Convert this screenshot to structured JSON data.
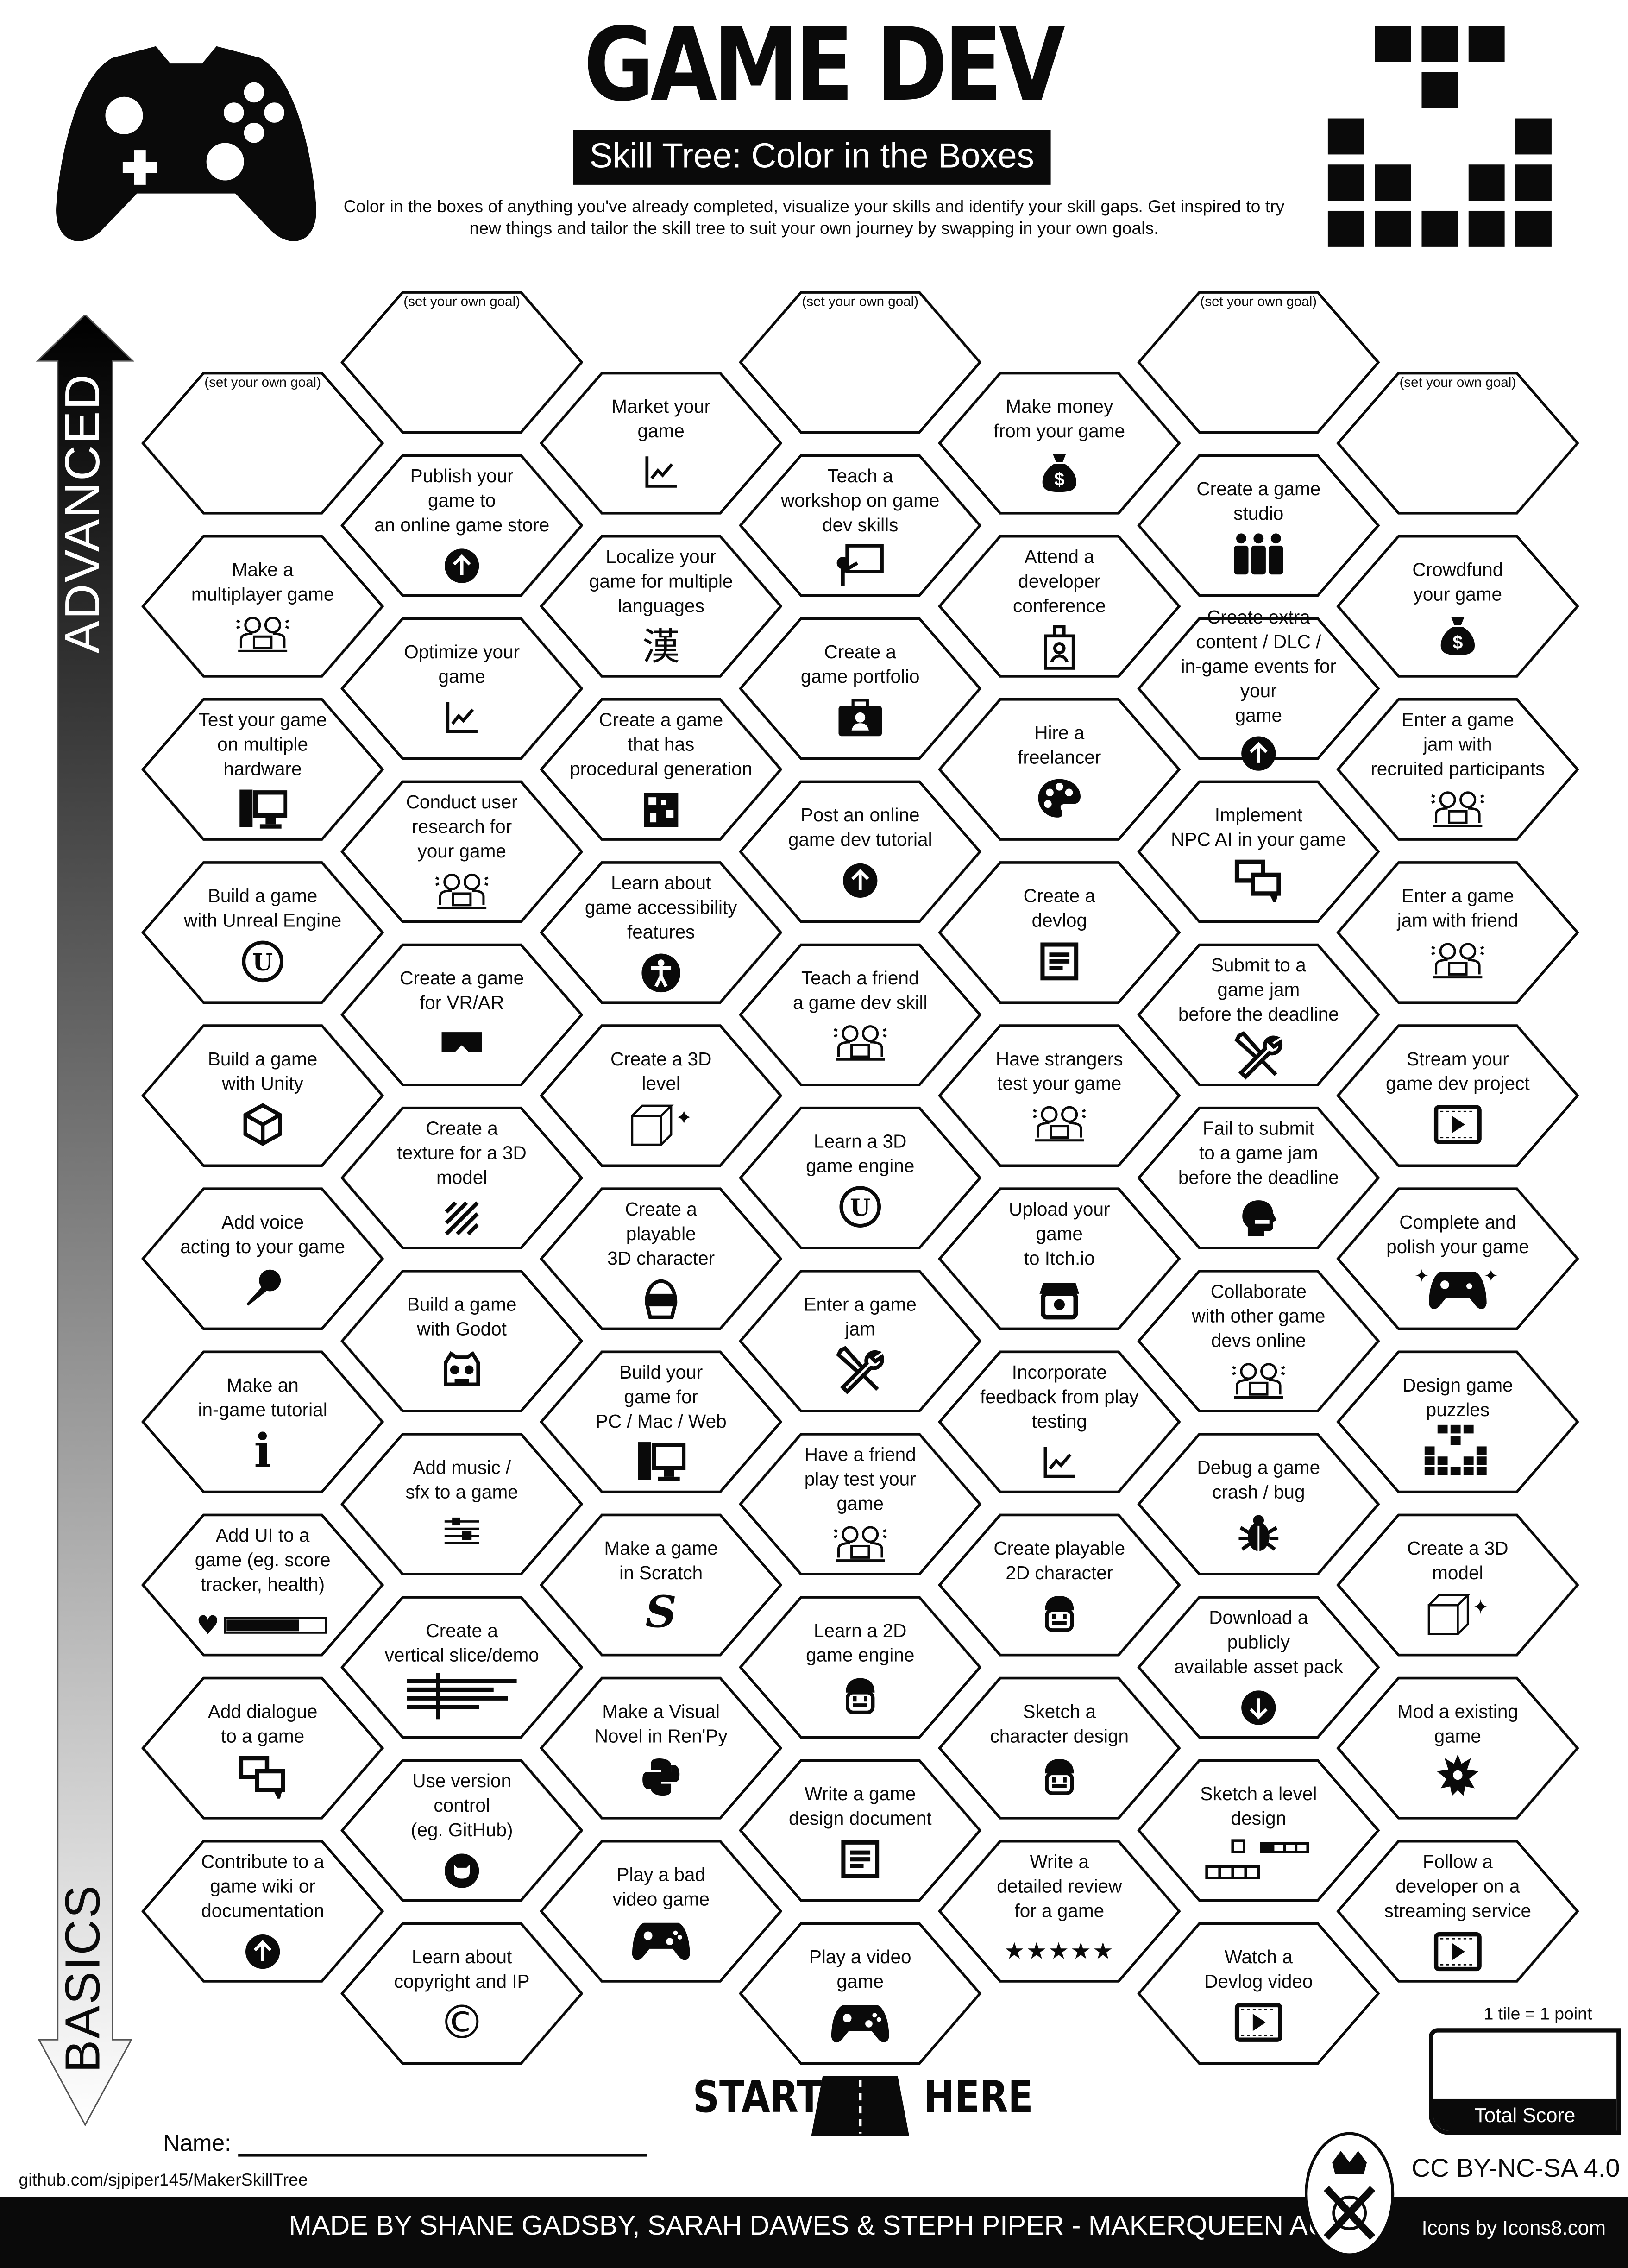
{
  "header": {
    "title": "GAME DEV",
    "subtitle": "Skill Tree: Color in the Boxes",
    "description": "Color in the boxes of anything you've already completed, visualize your skills and identify your skill gaps.  Get inspired to try new things and tailor the skill tree to suit your own journey by swapping in your own goals."
  },
  "axis": {
    "top_label": "ADVANCED",
    "bottom_label": "BASICS"
  },
  "columns": [
    [
      {
        "goal": "(set your own goal)"
      },
      {
        "text": "Make a\nmultiplayer game",
        "icon": "team"
      },
      {
        "text": "Test your game\non multiple\nhardware",
        "icon": "desktop"
      },
      {
        "text": "Build a game\nwith Unreal Engine",
        "icon": "unreal"
      },
      {
        "text": "Build a game\nwith Unity",
        "icon": "unity"
      },
      {
        "text": "Add voice\nacting to your game",
        "icon": "microphone"
      },
      {
        "text": "Make an\nin-game tutorial",
        "icon": "info"
      },
      {
        "text": "Add UI to a\ngame (eg. score\ntracker, health)",
        "icon": "health-bar"
      },
      {
        "text": "Add dialogue\nto a game",
        "icon": "chat"
      },
      {
        "text": "Contribute to a\ngame wiki or\ndocumentation",
        "icon": "upload"
      }
    ],
    [
      {
        "goal": "(set your own goal)"
      },
      {
        "text": "Publish your\ngame to\nan online game store",
        "icon": "upload"
      },
      {
        "text": "Optimize your\ngame",
        "icon": "chart"
      },
      {
        "text": "Conduct user\nresearch for\nyour game",
        "icon": "team"
      },
      {
        "text": "Create a game\nfor VR/AR",
        "icon": "vr-headset"
      },
      {
        "text": "Create a\ntexture for a 3D\nmodel",
        "icon": "texture"
      },
      {
        "text": "Build a game\nwith Godot",
        "icon": "godot"
      },
      {
        "text": "Add music /\nsfx to a game",
        "icon": "music"
      },
      {
        "text": "Create a\nvertical slice/demo",
        "icon": "timeline"
      },
      {
        "text": "Use version\ncontrol\n(eg. GitHub)",
        "icon": "github"
      },
      {
        "text": "Learn about\ncopyright and IP",
        "icon": "copyright"
      }
    ],
    [
      {
        "text": "Market your\ngame",
        "icon": "chart"
      },
      {
        "text": "Localize your\ngame for multiple\nlanguages",
        "icon": "kanji"
      },
      {
        "text": "Create a game\nthat has\nprocedural generation",
        "icon": "procedural"
      },
      {
        "text": "Learn about\ngame accessibility\nfeatures",
        "icon": "accessibility"
      },
      {
        "text": "Create a 3D\nlevel",
        "icon": "cube"
      },
      {
        "text": "Create a\nplayable\n3D character",
        "icon": "helmet"
      },
      {
        "text": "Build your\ngame for\nPC / Mac / Web",
        "icon": "desktop"
      },
      {
        "text": "Make a game\nin Scratch",
        "icon": "scratch"
      },
      {
        "text": "Make a Visual\nNovel in Ren'Py",
        "icon": "python"
      },
      {
        "text": "Play a bad\nvideo game",
        "icon": "gamepad"
      }
    ],
    [
      {
        "goal": "(set your own goal)"
      },
      {
        "text": "Teach a\nworkshop on game\ndev skills",
        "icon": "presentation"
      },
      {
        "text": "Create a\ngame portfolio",
        "icon": "portfolio"
      },
      {
        "text": "Post an online\ngame dev tutorial",
        "icon": "upload"
      },
      {
        "text": "Teach a friend\na game dev skill",
        "icon": "team"
      },
      {
        "text": "Learn a 3D\ngame engine",
        "icon": "unreal"
      },
      {
        "text": "Enter a game\njam",
        "icon": "tools"
      },
      {
        "text": "Have a friend\nplay test your\ngame",
        "icon": "team"
      },
      {
        "text": "Learn a 2D\ngame engine",
        "icon": "character-face"
      },
      {
        "text": "Write a game\ndesign document",
        "icon": "document"
      },
      {
        "text": "Play a video\ngame",
        "icon": "gamepad"
      }
    ],
    [
      {
        "text": "Make money\nfrom your game",
        "icon": "money-bag"
      },
      {
        "text": "Attend a\ndeveloper\nconference",
        "icon": "id-badge"
      },
      {
        "text": "Hire a\nfreelancer",
        "icon": "palette"
      },
      {
        "text": "Create a\ndevlog",
        "icon": "document"
      },
      {
        "text": "Have strangers\ntest your game",
        "icon": "team"
      },
      {
        "text": "Upload your\ngame\nto Itch.io",
        "icon": "itch"
      },
      {
        "text": "Incorporate\nfeedback from play\ntesting",
        "icon": "chart"
      },
      {
        "text": "Create playable\n2D character",
        "icon": "character-face"
      },
      {
        "text": "Sketch a\ncharacter design",
        "icon": "character-face"
      },
      {
        "text": "Write a\ndetailed review\nfor a game",
        "icon": "stars"
      }
    ],
    [
      {
        "goal": "(set your own goal)"
      },
      {
        "text": "Create a game\nstudio",
        "icon": "people"
      },
      {
        "text": "Create extra\ncontent / DLC /\nin-game events for your\ngame",
        "icon": "upload"
      },
      {
        "text": "Implement\nNPC AI in your game",
        "icon": "chat"
      },
      {
        "text": "Submit to a\ngame jam\nbefore the deadline",
        "icon": "tools"
      },
      {
        "text": "Fail to submit\nto a game jam\nbefore the deadline",
        "icon": "frustrated"
      },
      {
        "text": "Collaborate\nwith other game\ndevs online",
        "icon": "team"
      },
      {
        "text": "Debug a game\ncrash / bug",
        "icon": "bug"
      },
      {
        "text": "Download a\npublicly\navailable asset pack",
        "icon": "download"
      },
      {
        "text": "Sketch a level\ndesign",
        "icon": "level"
      },
      {
        "text": "Watch a\nDevlog video",
        "icon": "video"
      }
    ],
    [
      {
        "goal": "(set your own goal)"
      },
      {
        "text": "Crowdfund\nyour game",
        "icon": "money-bag"
      },
      {
        "text": "Enter a game\njam with\nrecruited participants",
        "icon": "team"
      },
      {
        "text": "Enter a game\njam with friend",
        "icon": "team"
      },
      {
        "text": "Stream your\ngame dev project",
        "icon": "video"
      },
      {
        "text": "Complete and\npolish your game",
        "icon": "gamepad-sparkle"
      },
      {
        "text": "Design game\npuzzles",
        "icon": "puzzle-pixels"
      },
      {
        "text": "Create a 3D\nmodel",
        "icon": "cube"
      },
      {
        "text": "Mod a existing\ngame",
        "icon": "dragon"
      },
      {
        "text": "Follow a\ndeveloper on a\nstreaming service",
        "icon": "video"
      }
    ]
  ],
  "start": {
    "left": "START",
    "right": "HERE"
  },
  "name_label": "Name:",
  "github": "github.com/sjpiper145/MakerSkillTree",
  "score": {
    "note": "1 tile = 1 point",
    "label": "Total Score"
  },
  "license": "CC BY-NC-SA 4.0",
  "footer": {
    "credits": "MADE BY SHANE GADSBY, SARAH DAWES & STEPH PIPER  -  MAKERQUEEN AU",
    "icons_credit": "Icons by Icons8.com"
  },
  "logo_icon": "makerqueen-logo",
  "colors": {
    "ink": "#0a0a0a",
    "paper": "#ffffff"
  }
}
